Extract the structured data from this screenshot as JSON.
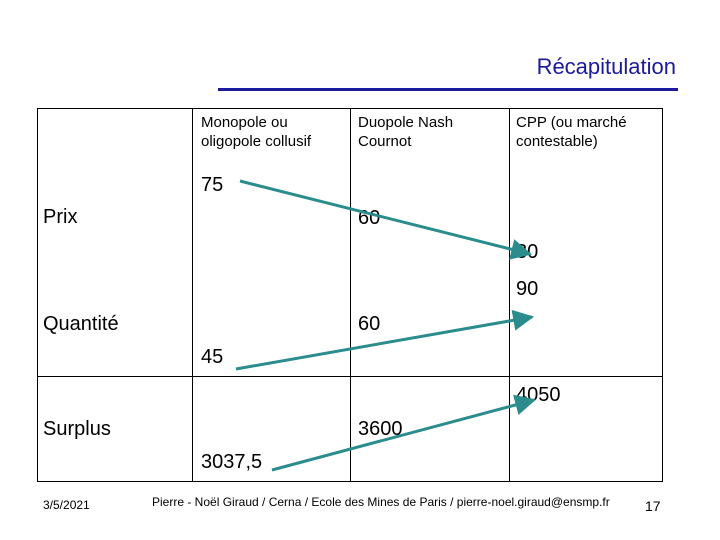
{
  "slide": {
    "title": "Récapitulation",
    "title_color": "#1a1a9a",
    "arrow_color": "#2a8c8c"
  },
  "table": {
    "columns": [
      "Monopole ou oligopole collusif",
      "Duopole Nash Cournot",
      "CPP (ou marché contestable)"
    ],
    "rows": [
      {
        "label": "Prix",
        "values": [
          "75",
          "60",
          "30"
        ]
      },
      {
        "label": "Quantité",
        "values": [
          "45",
          "60",
          "90"
        ]
      },
      {
        "label": "Surplus",
        "values": [
          "3037,5",
          "3600",
          "4050"
        ]
      }
    ]
  },
  "footer": {
    "date": "3/5/2021",
    "credit": "Pierre - Noël Giraud / Cerna / Ecole des Mines de Paris / pierre-noel.giraud@ensmp.fr",
    "page": "17"
  }
}
